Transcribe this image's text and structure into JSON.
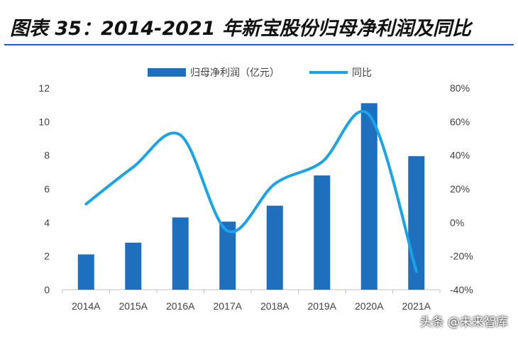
{
  "title": "图表 35：2014-2021 年新宝股份归母净利润及同比",
  "watermark": "头条 @未来智库",
  "chart_data": {
    "type": "bar",
    "categories": [
      "2014A",
      "2015A",
      "2016A",
      "2017A",
      "2018A",
      "2019A",
      "2020A",
      "2021A"
    ],
    "series": [
      {
        "name": "归母净利润（亿元）",
        "type": "bar",
        "axis": "left",
        "values": [
          2.1,
          2.8,
          4.3,
          4.05,
          5.0,
          6.8,
          11.1,
          7.95
        ],
        "color": "#1f6fbf"
      },
      {
        "name": "同比",
        "type": "line",
        "axis": "right",
        "values": [
          11,
          33,
          52,
          -5,
          23,
          36,
          64,
          -29
        ],
        "color": "#1aa3e8"
      }
    ],
    "y_left": {
      "min": 0,
      "max": 12,
      "ticks": [
        "0",
        "2",
        "4",
        "6",
        "8",
        "10",
        "12"
      ]
    },
    "y_right": {
      "min": -40,
      "max": 80,
      "ticks": [
        "-40%",
        "-20%",
        "0%",
        "20%",
        "40%",
        "60%",
        "80%"
      ]
    },
    "legend": {
      "placement": "top"
    },
    "grid": false
  }
}
